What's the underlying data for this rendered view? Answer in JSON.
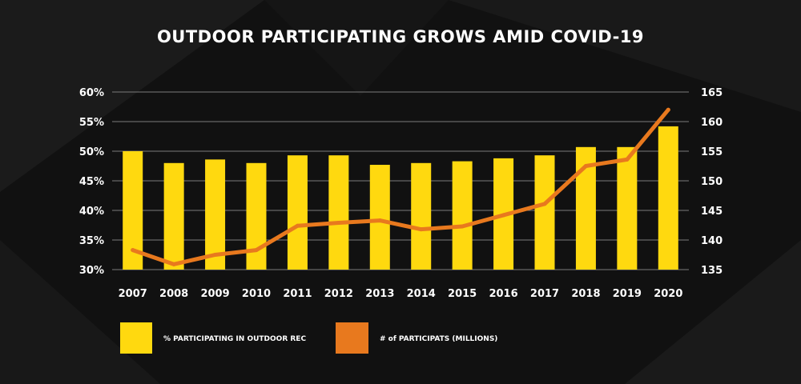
{
  "colors": {
    "background": "#111111",
    "bar": "#ffd90f",
    "line": "#e8791e",
    "grid": "#7a7a7a",
    "text": "#ffffff"
  },
  "chart_data": {
    "type": "bar",
    "title": "OUTDOOR PARTICIPATING GROWS AMID COVID-19",
    "categories": [
      "2007",
      "2008",
      "2009",
      "2010",
      "2011",
      "2012",
      "2013",
      "2014",
      "2015",
      "2016",
      "2017",
      "2018",
      "2019",
      "2020"
    ],
    "series": [
      {
        "name": "% PARTICIPATING IN OUTDOOR REC",
        "type": "bar",
        "axis": "left",
        "values": [
          50.0,
          48.0,
          48.6,
          48.0,
          49.3,
          49.3,
          47.7,
          48.0,
          48.3,
          48.8,
          49.3,
          50.7,
          50.7,
          54.2
        ]
      },
      {
        "name": "# of PARTICIPATS (MILLIONS)",
        "type": "line",
        "axis": "right",
        "values": [
          138.3,
          135.9,
          137.5,
          138.3,
          142.4,
          142.9,
          143.3,
          141.8,
          142.3,
          144.2,
          146.1,
          152.5,
          153.6,
          162.0
        ]
      }
    ],
    "y_left": {
      "range": [
        30,
        60
      ],
      "ticks": [
        "30%",
        "35%",
        "40%",
        "45%",
        "50%",
        "55%",
        "60%"
      ]
    },
    "y_right": {
      "range": [
        135,
        165
      ],
      "ticks": [
        "135",
        "140",
        "145",
        "150",
        "155",
        "160",
        "165"
      ]
    },
    "grid": true,
    "legend_position": "bottom"
  }
}
